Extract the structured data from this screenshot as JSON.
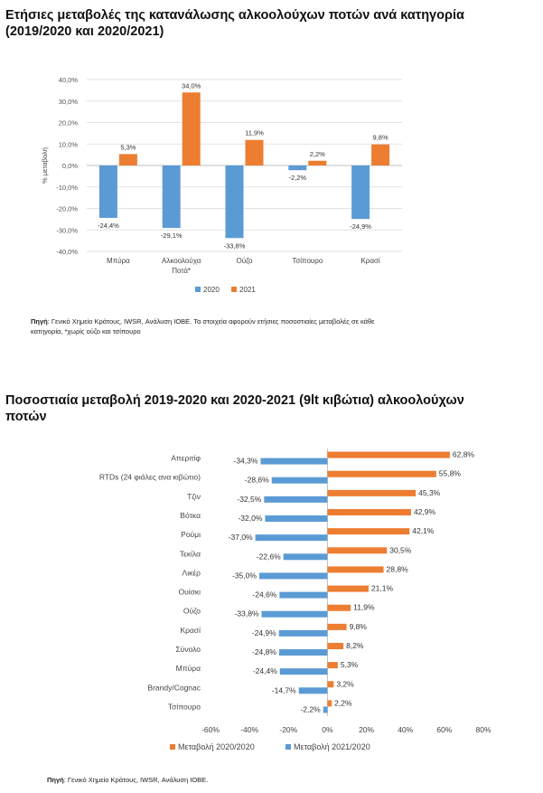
{
  "chart1": {
    "title_line1": "Ετήσιες μεταβολές της κατανάλωσης αλκοολούχων ποτών ανά κατηγορία",
    "title_line2": "(2019/2020 και 2020/2021)",
    "source_label": "Πηγή",
    "source_text_1": ": Γενικό Χημείο Κράτους, IWSR, Ανάλυση ΙΟΒΕ. Τα στοιχεία αφορούν ετήσιες ποσοστιαίες μεταβολές σε κάθε",
    "source_text_2": "κατηγορία, *χωρίς ούζο και τσίπουρο"
  },
  "chart2": {
    "title_line1": "Ποσοστιαία μεταβολή 2019-2020 και 2020-2021 (9lt κιβώτια) αλκοολούχων",
    "title_line2": "ποτών",
    "source_label": "Πηγή",
    "source_text": ": Γενικό Χημείο Κράτους, IWSR, Ανάλυση ΙΟΒΕ."
  },
  "colors": {
    "blue": "#5b9bd5",
    "orange": "#ed7d31",
    "grid": "#d9d9d9",
    "axis": "#bfbfbf"
  },
  "chart_data": [
    {
      "type": "bar",
      "ylabel": "% μεταβολή",
      "ylim": [
        -40,
        40
      ],
      "yticks": [
        "-40,0%",
        "-30,0%",
        "-20,0%",
        "-10,0%",
        "0,0%",
        "10,0%",
        "20,0%",
        "30,0%",
        "40,0%"
      ],
      "categories": [
        {
          "line1": "Μπύρα",
          "line2": ""
        },
        {
          "line1": "Αλκοολούχα",
          "line2": "Ποτά*"
        },
        {
          "line1": "Ούζο",
          "line2": ""
        },
        {
          "line1": "Τσίπουρο",
          "line2": ""
        },
        {
          "line1": "Κρασί",
          "line2": ""
        }
      ],
      "series": [
        {
          "name": "2020",
          "color": "#5b9bd5",
          "values": [
            -24.4,
            -29.1,
            -33.8,
            -2.2,
            -24.9
          ],
          "labels": [
            "-24,4%",
            "-29,1%",
            "-33,8%",
            "-2,2%",
            "-24,9%"
          ]
        },
        {
          "name": "2021",
          "color": "#ed7d31",
          "values": [
            5.3,
            34.0,
            11.9,
            2.2,
            9.8
          ],
          "labels": [
            "5,3%",
            "34,0%",
            "11,9%",
            "2,2%",
            "9,8%"
          ]
        }
      ],
      "legend": "bottom",
      "grid": true
    },
    {
      "type": "bar",
      "orientation": "horizontal",
      "xlim": [
        -60,
        80
      ],
      "xticks": [
        "-60%",
        "-40%",
        "-20%",
        "0%",
        "20%",
        "40%",
        "60%",
        "80%"
      ],
      "categories": [
        "Απεριτίφ",
        "RTDs (24 φιάλες ανα κιβώτιο)",
        "Τζιν",
        "Βότκα",
        "Ρούμι",
        "Τεκίλα",
        "Λικέρ",
        "Ουίσκι",
        "Ούζο",
        "Κρασί",
        "Σύνολο",
        "Μπύρα",
        "Brandy/Cognac",
        "Τσίπουρο"
      ],
      "series": [
        {
          "name": "Μεταβολή 2020/2020",
          "color": "#ed7d31",
          "values": [
            62.8,
            55.8,
            45.3,
            42.9,
            42.1,
            30.5,
            28.8,
            21.1,
            11.9,
            9.8,
            8.2,
            5.3,
            3.2,
            2.2
          ],
          "labels": [
            "62,8%",
            "55,8%",
            "45,3%",
            "42,9%",
            "42,1%",
            "30,5%",
            "28,8%",
            "21,1%",
            "11,9%",
            "9,8%",
            "8,2%",
            "5,3%",
            "3,2%",
            "2,2%"
          ]
        },
        {
          "name": "Μεταβολή 2021/2020",
          "color": "#5b9bd5",
          "values": [
            -34.3,
            -28.6,
            -32.5,
            -32.0,
            -37.0,
            -22.6,
            -35.0,
            -24.6,
            -33.8,
            -24.9,
            -24.8,
            -24.4,
            -14.7,
            -2.2
          ],
          "labels": [
            "-34,3%",
            "-28,6%",
            "-32,5%",
            "-32,0%",
            "-37,0%",
            "-22,6%",
            "-35,0%",
            "-24,6%",
            "-33,8%",
            "-24,9%",
            "-24,8%",
            "-24,4%",
            "-14,7%",
            "-2,2%"
          ]
        }
      ],
      "legend": "bottom",
      "grid": false
    }
  ]
}
